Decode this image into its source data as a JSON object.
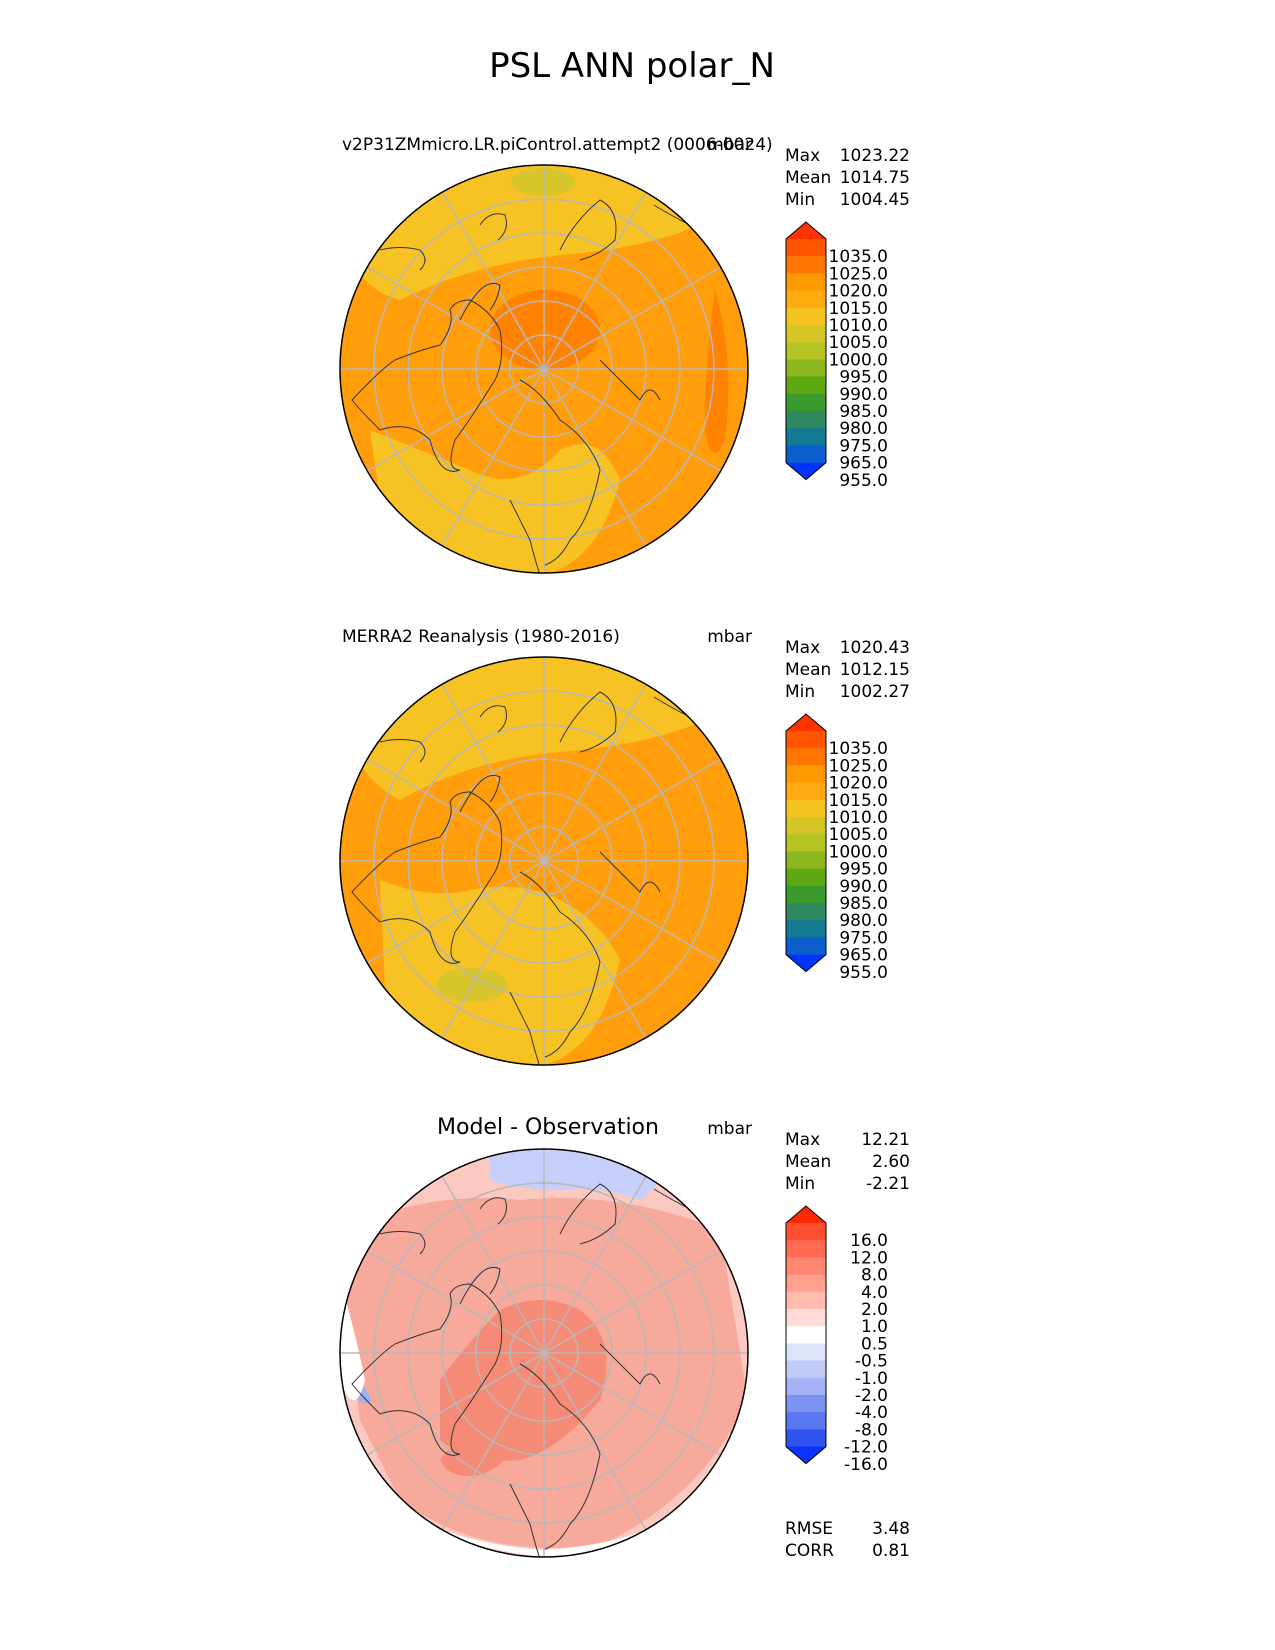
{
  "figure": {
    "title": "PSL ANN polar_N"
  },
  "panels": [
    {
      "id": "model",
      "title_left": "v2P31ZMmicro.LR.piControl.attempt2 (0006-0024)",
      "units": "mbar",
      "stats": [
        {
          "label": "Max",
          "value": "1023.22"
        },
        {
          "label": "Mean",
          "value": "1014.75"
        },
        {
          "label": "Min",
          "value": "1004.45"
        }
      ],
      "colorbar_ticks": [
        "1035.0",
        "1025.0",
        "1020.0",
        "1015.0",
        "1010.0",
        "1005.0",
        "1000.0",
        "995.0",
        "990.0",
        "985.0",
        "980.0",
        "975.0",
        "965.0",
        "955.0"
      ]
    },
    {
      "id": "obs",
      "title_left": "MERRA2 Reanalysis (1980-2016)",
      "units": "mbar",
      "stats": [
        {
          "label": "Max",
          "value": "1020.43"
        },
        {
          "label": "Mean",
          "value": "1012.15"
        },
        {
          "label": "Min",
          "value": "1002.27"
        }
      ],
      "colorbar_ticks": [
        "1035.0",
        "1025.0",
        "1020.0",
        "1015.0",
        "1010.0",
        "1005.0",
        "1000.0",
        "995.0",
        "990.0",
        "985.0",
        "980.0",
        "975.0",
        "965.0",
        "955.0"
      ]
    },
    {
      "id": "diff",
      "title_center": "Model - Observation",
      "units": "mbar",
      "stats": [
        {
          "label": "Max",
          "value": "12.21"
        },
        {
          "label": "Mean",
          "value": "2.60"
        },
        {
          "label": "Min",
          "value": "-2.21"
        }
      ],
      "colorbar_ticks": [
        "16.0",
        "12.0",
        "8.0",
        "4.0",
        "2.0",
        "1.0",
        "0.5",
        "-0.5",
        "-1.0",
        "-2.0",
        "-4.0",
        "-8.0",
        "-12.0",
        "-16.0"
      ],
      "extra_stats": [
        {
          "label": "RMSE",
          "value": "3.48"
        },
        {
          "label": "CORR",
          "value": "0.81"
        }
      ]
    }
  ],
  "colors": {
    "psl_cmap": [
      "#ff3300",
      "#ff5500",
      "#ff7700",
      "#ff9900",
      "#ffaa11",
      "#f5c320",
      "#d6c526",
      "#b5c323",
      "#8db71f",
      "#5ea812",
      "#3a9a2e",
      "#2e8a5e",
      "#137a94",
      "#0b5fcc",
      "#0033ff"
    ],
    "diff_cmap": [
      "#ff2a00",
      "#ff4f33",
      "#ff6a50",
      "#ff8670",
      "#ffa08e",
      "#ffbcae",
      "#ffddd6",
      "#ffffff",
      "#dce3fb",
      "#c0cbf8",
      "#a3b3f5",
      "#7c93f2",
      "#5a76f0",
      "#3053f0",
      "#0a33ff"
    ],
    "psl_light": "#f7c223",
    "psl_mid": "#ff9d0a",
    "psl_dark": "#ff8200",
    "psl_olive": "#d8c52b",
    "diff_pink": "#f7a99c",
    "diff_pink_light": "#fbc9bf",
    "diff_salmon": "#f58b76",
    "diff_blue_light": "#c6d0fb",
    "diff_blue": "#9fb0f6"
  }
}
